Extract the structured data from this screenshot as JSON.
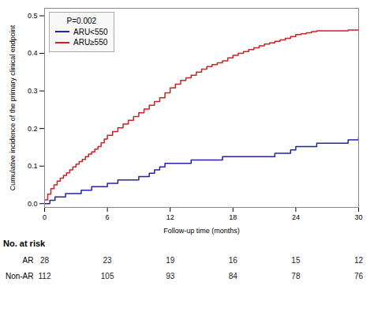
{
  "chart_data": {
    "type": "step",
    "xlabel": "Follow-up time (months)",
    "ylabel": "Cumulative incidence of the primary clinical endpoint",
    "xlim": [
      0,
      30
    ],
    "ylim": [
      -0.01,
      0.52
    ],
    "xticks": [
      0,
      6,
      12,
      18,
      24,
      30
    ],
    "yticks": [
      {
        "value": 0,
        "label": "0.0"
      },
      0.1,
      0.2,
      0.3,
      0.4,
      0.5
    ],
    "grid": false,
    "legend": "upper left",
    "legend_title": "P=0.002",
    "series": [
      {
        "name": "ARU<550",
        "color": "#2222aa",
        "x": [
          0.0,
          0.5,
          1.0,
          1.5,
          2.0,
          2.5,
          3.0,
          3.5,
          4.0,
          4.5,
          5.0,
          5.5,
          6.0,
          6.5,
          7.0,
          7.5,
          8.0,
          8.5,
          9.0,
          9.5,
          10.0,
          10.5,
          11.0,
          11.5,
          12.0,
          13.0,
          14.0,
          15.0,
          16.0,
          17.0,
          18.0,
          19.0,
          20.0,
          21.0,
          22.0,
          23.0,
          23.5,
          24.0,
          25.0,
          26.0,
          27.0,
          28.0,
          29.0,
          30.0
        ],
        "values": [
          0.0,
          0.009,
          0.018,
          0.018,
          0.027,
          0.027,
          0.027,
          0.036,
          0.036,
          0.045,
          0.045,
          0.045,
          0.054,
          0.054,
          0.063,
          0.063,
          0.063,
          0.063,
          0.072,
          0.072,
          0.081,
          0.09,
          0.098,
          0.107,
          0.107,
          0.107,
          0.116,
          0.116,
          0.116,
          0.125,
          0.125,
          0.125,
          0.125,
          0.125,
          0.134,
          0.134,
          0.143,
          0.152,
          0.152,
          0.161,
          0.161,
          0.161,
          0.17,
          0.178
        ]
      },
      {
        "name": "ARU≥550",
        "color": "#cc2222",
        "x": [
          0.0,
          0.3,
          0.6,
          0.9,
          1.2,
          1.5,
          1.8,
          2.1,
          2.4,
          2.7,
          3.0,
          3.3,
          3.6,
          3.9,
          4.2,
          4.5,
          4.8,
          5.1,
          5.4,
          5.7,
          6.0,
          6.5,
          7.0,
          7.5,
          8.0,
          8.5,
          9.0,
          9.5,
          10.0,
          10.5,
          11.0,
          11.5,
          12.0,
          12.5,
          13.0,
          13.5,
          14.0,
          14.5,
          15.0,
          15.5,
          16.0,
          16.5,
          17.0,
          17.5,
          18.0,
          18.5,
          19.0,
          19.5,
          20.0,
          20.5,
          21.0,
          21.5,
          22.0,
          22.5,
          23.0,
          23.5,
          24.0,
          24.5,
          25.0,
          25.5,
          26.0,
          27.0,
          28.0,
          29.0,
          30.0
        ],
        "values": [
          0.01,
          0.025,
          0.04,
          0.05,
          0.06,
          0.068,
          0.075,
          0.082,
          0.09,
          0.098,
          0.105,
          0.112,
          0.118,
          0.125,
          0.132,
          0.138,
          0.145,
          0.152,
          0.162,
          0.172,
          0.182,
          0.192,
          0.202,
          0.212,
          0.222,
          0.232,
          0.242,
          0.252,
          0.262,
          0.272,
          0.282,
          0.295,
          0.308,
          0.318,
          0.328,
          0.335,
          0.342,
          0.35,
          0.358,
          0.365,
          0.37,
          0.375,
          0.38,
          0.388,
          0.395,
          0.4,
          0.405,
          0.41,
          0.415,
          0.42,
          0.425,
          0.428,
          0.432,
          0.436,
          0.44,
          0.445,
          0.45,
          0.452,
          0.455,
          0.458,
          0.46,
          0.46,
          0.46,
          0.462,
          0.462
        ]
      }
    ],
    "at_risk": {
      "title": "No. at risk",
      "times": [
        0,
        6,
        12,
        18,
        24,
        30
      ],
      "rows": [
        {
          "name": "AR",
          "values": [
            28,
            23,
            19,
            16,
            15,
            12
          ]
        },
        {
          "name": "Non-AR",
          "values": [
            112,
            105,
            93,
            84,
            78,
            76
          ]
        }
      ]
    }
  }
}
